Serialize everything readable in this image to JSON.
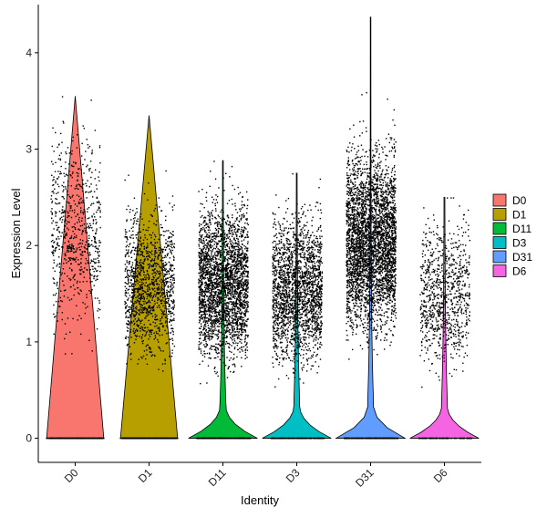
{
  "chart_data": {
    "type": "violin",
    "xlabel": "Identity",
    "ylabel": "Expression Level",
    "ylim": [
      -0.25,
      4.5
    ],
    "yticks": [
      0,
      1,
      2,
      3,
      4
    ],
    "grid": false,
    "legend_position": "right",
    "categories": [
      "D0",
      "D1",
      "D11",
      "D3",
      "D31",
      "D6"
    ],
    "series": [
      {
        "name": "D0",
        "color": "#F8766D",
        "max": 3.55,
        "jitter_points": 1300,
        "zero_fraction": 0.45,
        "nonzero_range": [
          0.2,
          3.5
        ],
        "violin_density_at_zero": 0.01
      },
      {
        "name": "D1",
        "color": "#B79F00",
        "max": 3.35,
        "jitter_points": 2100,
        "zero_fraction": 0.4,
        "nonzero_range": [
          0.2,
          2.6
        ],
        "violin_density_at_zero": 0.01
      },
      {
        "name": "D11",
        "color": "#00BA38",
        "max": 2.88,
        "jitter_points": 3800,
        "zero_fraction": 0.25,
        "nonzero_range": [
          0.1,
          2.7
        ],
        "violin_density_at_zero": 1.0
      },
      {
        "name": "D3",
        "color": "#00BFC4",
        "max": 2.75,
        "jitter_points": 2900,
        "zero_fraction": 0.25,
        "nonzero_range": [
          0.1,
          2.6
        ],
        "violin_density_at_zero": 1.0
      },
      {
        "name": "D31",
        "color": "#619CFF",
        "max": 4.37,
        "jitter_points": 4700,
        "zero_fraction": 0.2,
        "nonzero_range": [
          0.3,
          3.3
        ],
        "violin_density_at_zero": 1.0
      },
      {
        "name": "D6",
        "color": "#F564E3",
        "max": 2.5,
        "jitter_points": 1400,
        "zero_fraction": 0.35,
        "nonzero_range": [
          0.1,
          2.5
        ],
        "violin_density_at_zero": 1.0
      }
    ]
  }
}
